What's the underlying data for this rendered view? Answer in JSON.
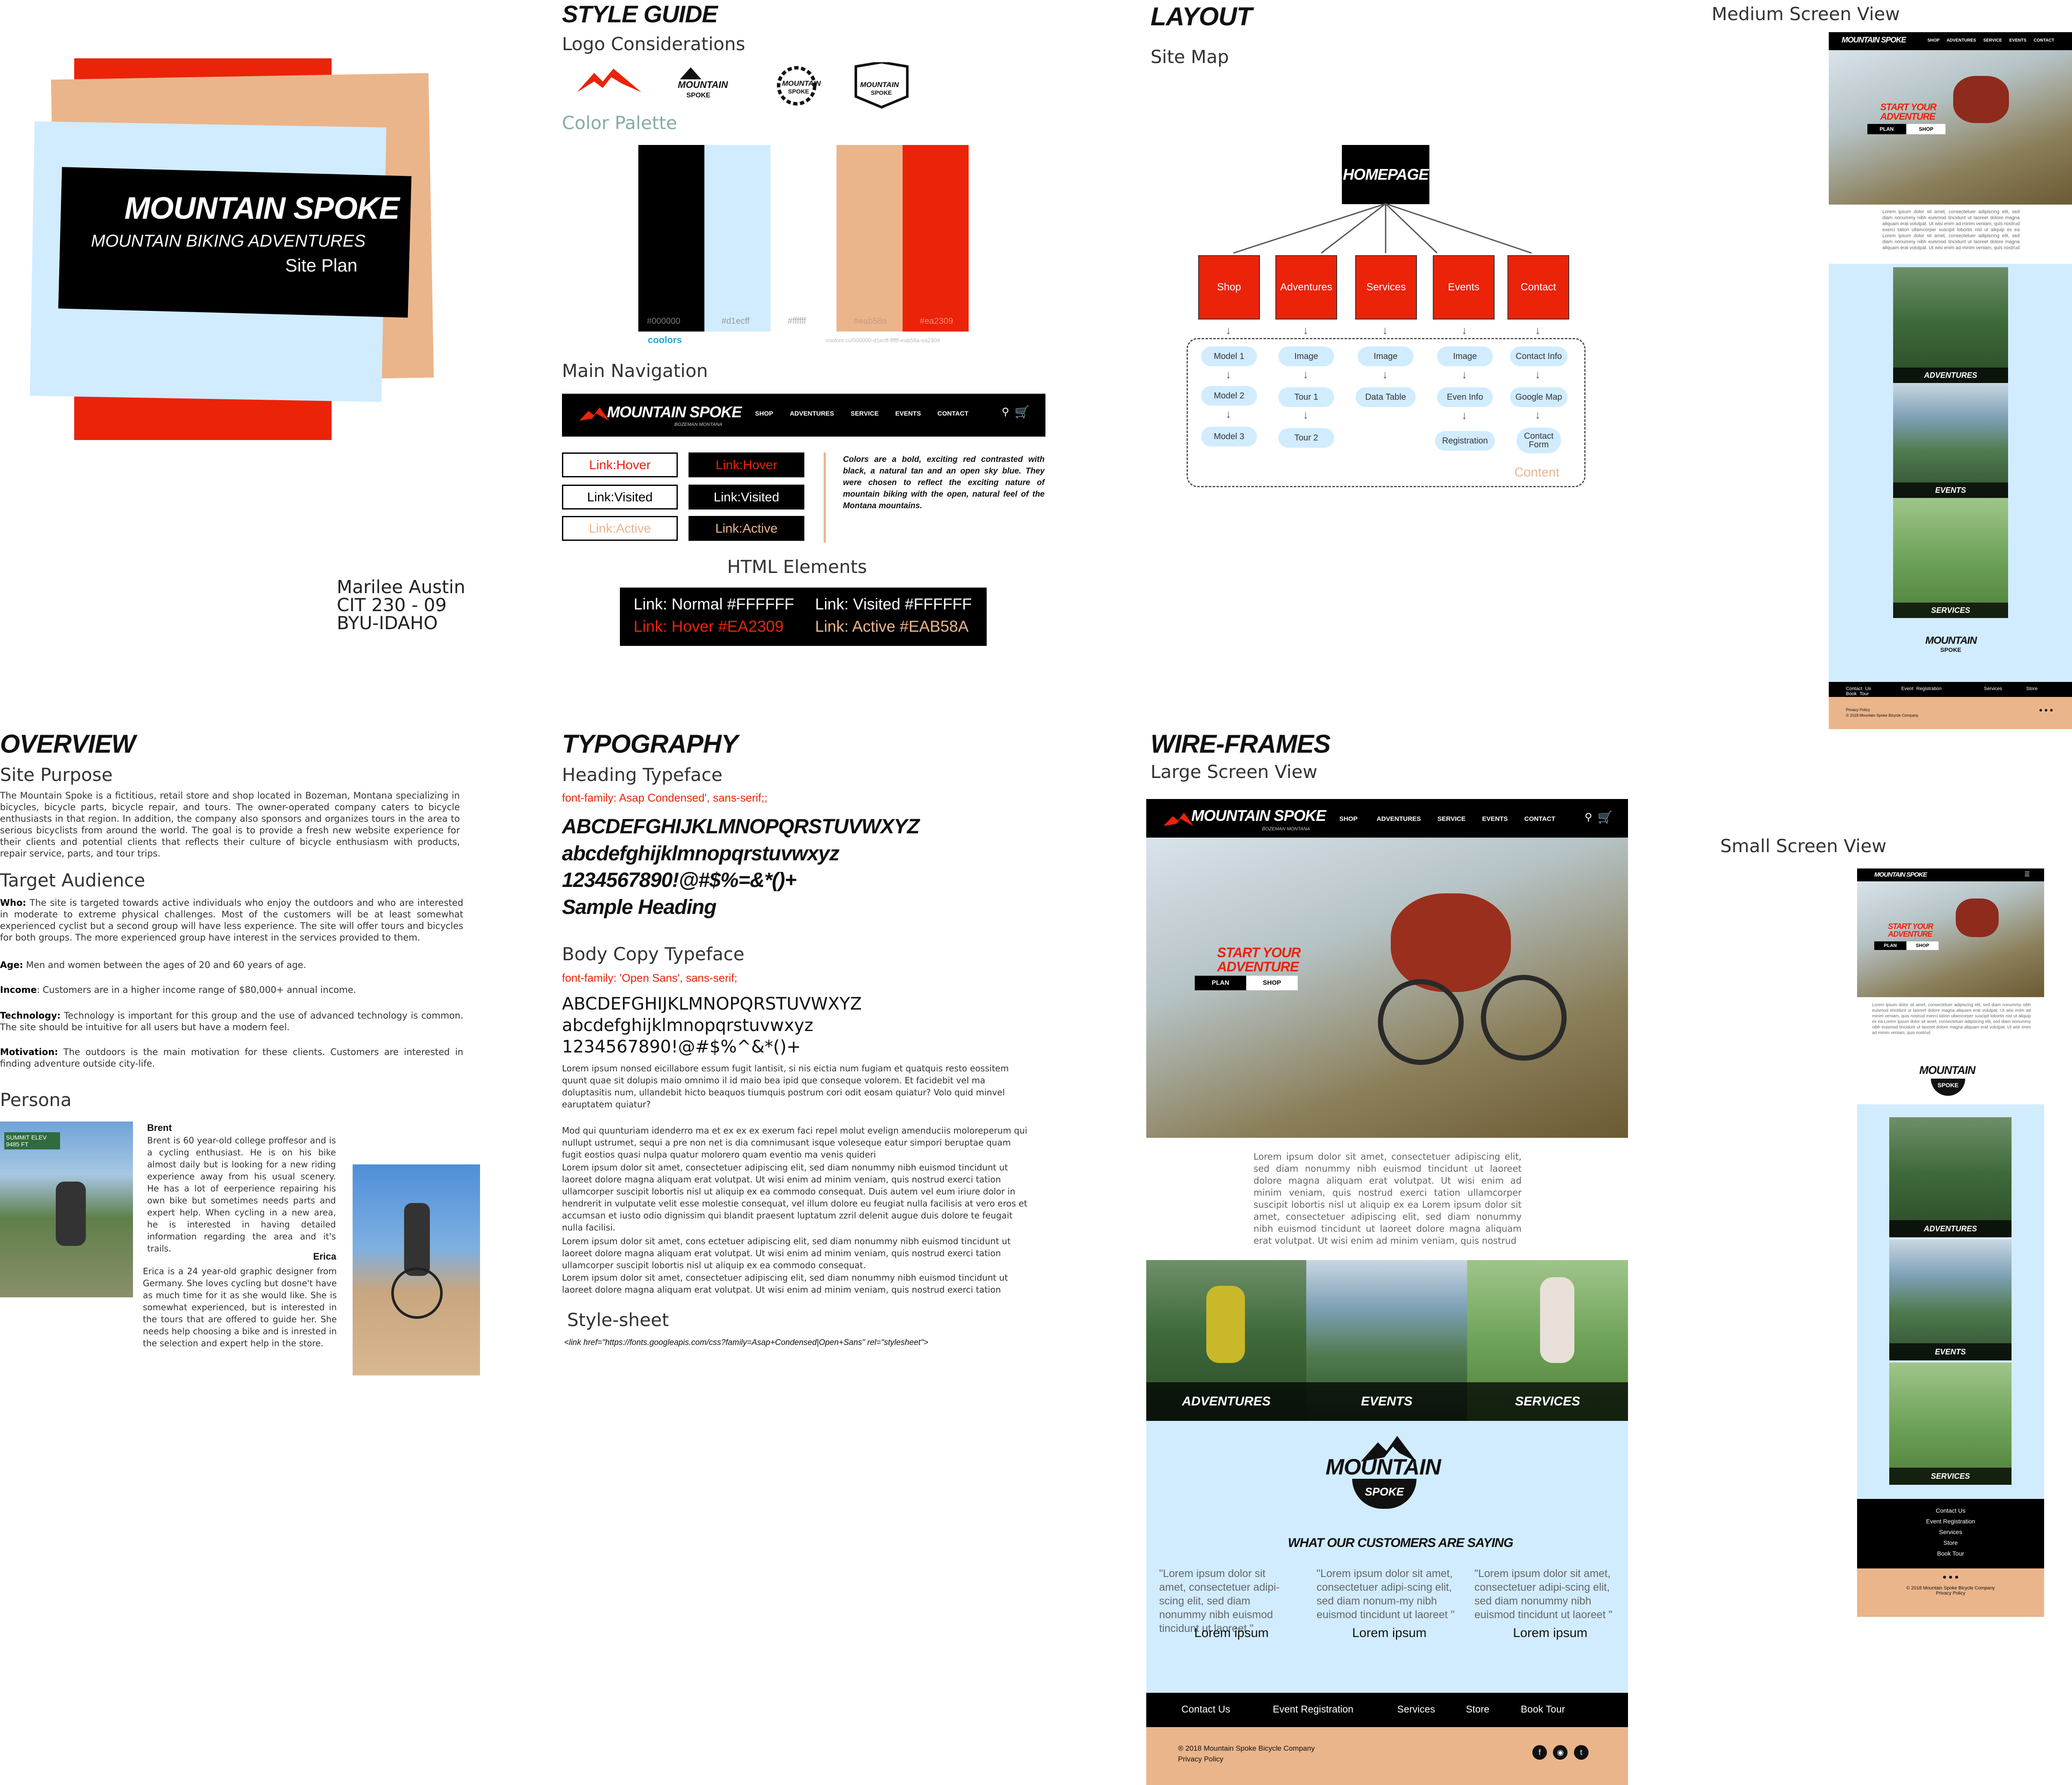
{
  "cover": {
    "title": "MOUNTAIN SPOKE",
    "subtitle": "MOUNTAIN BIKING ADVENTURES",
    "plan": "Site Plan"
  },
  "author": {
    "name": "Marilee Austin",
    "course": "CIT 230 - 09",
    "school": "BYU-IDAHO"
  },
  "style_guide": {
    "heading": "STYLE GUIDE",
    "logo_heading": "Logo Considerations",
    "palette_heading": "Color Palette",
    "swatches": [
      {
        "hex": "#000000",
        "label": "#000000"
      },
      {
        "hex": "#d1ecff",
        "label": "#d1ecff"
      },
      {
        "hex": "#ffffff",
        "label": "#ffffff"
      },
      {
        "hex": "#eab58a",
        "label": "#eab58a"
      },
      {
        "hex": "#ea2309",
        "label": "#ea2309"
      }
    ],
    "coolors": "coolors",
    "coolors_url": "coolors.co/000000-d1ecff-ffffff-eab58a-ea2309",
    "nav_heading": "Main Navigation",
    "nav_logo": "MOUNTAIN SPOKE",
    "nav_sub": "BOZEMAN MONTANA",
    "nav_items": [
      "SHOP",
      "ADVENTURES",
      "SERVICE",
      "EVENTS",
      "CONTACT"
    ],
    "links": {
      "hover": "Link:Hover",
      "visited": "Link:Visited",
      "active": "Link:Active"
    },
    "colors_note": "Colors are a bold, exciting red contrasted with black, a natural tan and an open sky blue. They were chosen to reflect the exciting nature of mountain biking with the open, natural feel of the Montana mountains.",
    "html_heading": "HTML Elements",
    "html_links": {
      "normal": "Link: Normal #FFFFFF",
      "visited": "Link: Visited #FFFFFF",
      "hover": "Link: Hover #EA2309",
      "active": "Link: Active #EAB58A"
    }
  },
  "layout": {
    "heading": "LAYOUT",
    "sitemap": "Site Map",
    "home": "HOMEPAGE",
    "pages": [
      "Shop",
      "Adventures",
      "Services",
      "Events",
      "Contact"
    ],
    "sub": {
      "shop": [
        "Model 1",
        "Model 2",
        "Model 3"
      ],
      "adv": [
        "Image",
        "Tour 1",
        "Tour 2"
      ],
      "serv": [
        "Image",
        "Data Table"
      ],
      "events": [
        "Image",
        "Even Info",
        "Registration"
      ],
      "contact": [
        "Contact Info",
        "Google Map",
        "Contact Form"
      ]
    },
    "content": "Content"
  },
  "overview": {
    "heading": "OVERVIEW",
    "purpose_h": "Site Purpose",
    "purpose": "The Mountain Spoke is a fictitious, retail store and shop located in Bozeman, Montana specializing in bicycles, bicycle parts, bicycle repair, and tours. The owner-operated company caters to bicycle enthusiasts in that region. In addition, the company also sponsors and organizes tours in the area to serious bicyclists from around the world. The goal is to provide a fresh new website experience for their clients and potential clients that reflects their culture of bicycle enthusiasm with products, repair service, parts, and tour trips.",
    "audience_h": "Target Audience",
    "who_l": "Who:",
    "who": " The site is targeted towards active individuals who enjoy the outdoors and who are interested in moderate to extreme physical challenges. Most of the customers will be at least somewhat experienced cyclist but a second group will have less experience. The site will offer tours and bicycles for both groups. The more experienced group have interest in the services provided to them.",
    "age_l": "Age:",
    "age": " Men and women between the ages of 20 and 60 years of age.",
    "income_l": "Income",
    "income": ": Customers are in a higher income range of $80,000+ annual income.",
    "tech_l": "Technology:",
    "tech": " Technology is important for this group and the use of advanced technology is common. The site should be intuitive for all users but have a modern feel.",
    "mot_l": "Motivation:",
    "mot": " The outdoors is the main motivation for these clients. Customers are interested in finding adventure outside city-life.",
    "persona_h": "Persona",
    "sign": "SUMMIT ELEV 9485 FT",
    "brent_name": "Brent",
    "brent": "Brent is 60 year-old college proffesor and is a cycling enthusiast. He is on his bike almost daily but is looking for a new riding experience away from his usual scenery. He has a lot of eerperience repairing his own bike but sometimes needs parts and expert help. When cycling in a new area, he is interested in having detailed information regarding the area and it's trails.",
    "erica_name": "Erica",
    "erica": "Erica is a 24 year-old graphic designer from Germany. She loves cycling but dosne't have as much time for it as she would like. She is somewhat experienced, but is interested in the tours that are offered to guide her. She needs help choosing a bike and is inrested in the selection and expert help in the store."
  },
  "typography": {
    "heading": "TYPOGRAPHY",
    "heading_tf": "Heading Typeface",
    "heading_ff": "font-family: Asap Condensed', sans-serif;;",
    "h_upper": "ABCDEFGHIJKLMNOPQRSTUVWXYZ",
    "h_lower": "abcdefghijklmnopqrstuvwxyz",
    "h_nums": "1234567890!@#$%=&*()+",
    "h_sample": "Sample Heading",
    "body_tf": "Body Copy Typeface",
    "body_ff": "font-family: 'Open Sans', sans-serif;",
    "b_upper": "ABCDEFGHIJKLMNOPQRSTUVWXYZ",
    "b_lower": "abcdefghijklmnopqrstuvwxyz",
    "b_nums": "1234567890!@#$%^&*()+",
    "lorem1": "Lorem ipsum nonsed eicillabore essum fugit lantisit, si nis eictia num fugiam et quatquis resto eossitem quunt quae sit dolupis maio omnimo il id maio bea ipid que conseque volorem. Et facidebit vel ma doluptasitis num, ullandebit hicto beaquos tiumquis postrum cori odit eosam quiatur? Volo quid minvel earuptatem quiatur?",
    "lorem2": "Mod qui quunturiam idenderro ma et ex ex ex exerum faci repel molut evelign amenduciis moloreperum qui nullupt ustrumet, sequi a pre non net is dia comnimusant isque voleseque eatur simpori beruptae quam fugit eostios quasi nulpa quatur molorero quam eventio ma venis quideri",
    "lorem3": "Lorem ipsum dolor sit amet, consectetuer adipiscing elit, sed diam nonummy nibh euismod tincidunt ut laoreet dolore magna aliquam erat volutpat. Ut wisi enim ad minim veniam, quis nostrud exerci tation ullamcorper suscipit lobortis nisl ut aliquip ex ea commodo consequat. Duis autem vel eum iriure dolor in hendrerit in vulputate velit esse molestie consequat, vel illum dolore eu feugiat nulla facilisis at vero eros et accumsan et iusto odio dignissim qui blandit praesent luptatum zzril delenit augue duis dolore te feugait nulla facilisi.",
    "lorem4": "Lorem ipsum dolor sit amet, cons ectetuer adipiscing elit, sed diam nonummy nibh euismod tincidunt ut laoreet dolore magna aliquam erat volutpat. Ut wisi enim ad minim veniam, quis nostrud exerci tation ullamcorper suscipit lobortis nisl ut aliquip ex ea commodo consequat.",
    "lorem5": "Lorem ipsum dolor sit amet, consectetuer adipiscing elit, sed diam nonummy nibh euismod tincidunt ut laoreet dolore magna aliquam erat volutpat. Ut wisi enim ad minim veniam, quis nostrud exerci tation",
    "stylesheet_h": "Style-sheet",
    "stylesheet": "<link href=\"https://fonts.googleapis.com/css?family=Asap+Condensed|Open+Sans\" rel=\"stylesheet\">"
  },
  "wireframes": {
    "heading": "WIRE-FRAMES",
    "large": "Large Screen View",
    "medium": "Medium  Screen View",
    "small": "Small Screen View",
    "logo": "MOUNTAIN SPOKE",
    "logo_sub": "BOZEMAN MONTANA",
    "nav": [
      "SHOP",
      "ADVENTURES",
      "SERVICE",
      "EVENTS",
      "CONTACT"
    ],
    "hero1": "START YOUR",
    "hero2": "ADVENTURE",
    "plan": "PLAN",
    "shop": "SHOP",
    "intro": "Lorem ipsum dolor sit amet, consectetuer adipiscing elit, sed diam nonummy nibh euismod tincidunt ut laoreet dolore magna aliquam erat volutpat. Ut wisi enim ad minim veniam, quis nostrud exerci tation ullamcorper suscipit lobortis nisl ut aliquip ex ea Lorem ipsum dolor sit amet, consectetuer adipiscing elit, sed diam nonummy nibh euismod tincidunt ut laoreet dolore magna aliquam erat volutpat. Ut wisi enim ad minim veniam, quis nostrud",
    "tiles": [
      "ADVENTURES",
      "EVENTS",
      "SERVICES"
    ],
    "logo_big1": "MOUNTAIN",
    "logo_big2": "SPOKE",
    "customers": "WHAT OUR CUSTOMERS ARE SAYING",
    "q1": "\"Lorem ipsum dolor sit amet, consectetuer adipi-scing elit, sed diam nonummy nibh euismod tincidunt ut laoreet \"",
    "q2": "\"Lorem ipsum dolor sit amet, consectetuer adipi-scing elit, sed diam nonum-my nibh euismod tincidunt ut laoreet \"",
    "q3": "\"Lorem ipsum dolor sit amet, consectetuer adipi-scing elit, sed diam nonummy nibh euismod tincidunt ut laoreet \"",
    "author": "Lorem ipsum",
    "footer": [
      "Contact Us",
      "Event Registration",
      "Services",
      "Store",
      "Book Tour"
    ],
    "copyright": "® 2018 Mountain Spoke Bicycle Company",
    "privacy": "Privacy Policy",
    "small_copyright": "© 2018 Mountain Spoke Bicycle Company"
  }
}
